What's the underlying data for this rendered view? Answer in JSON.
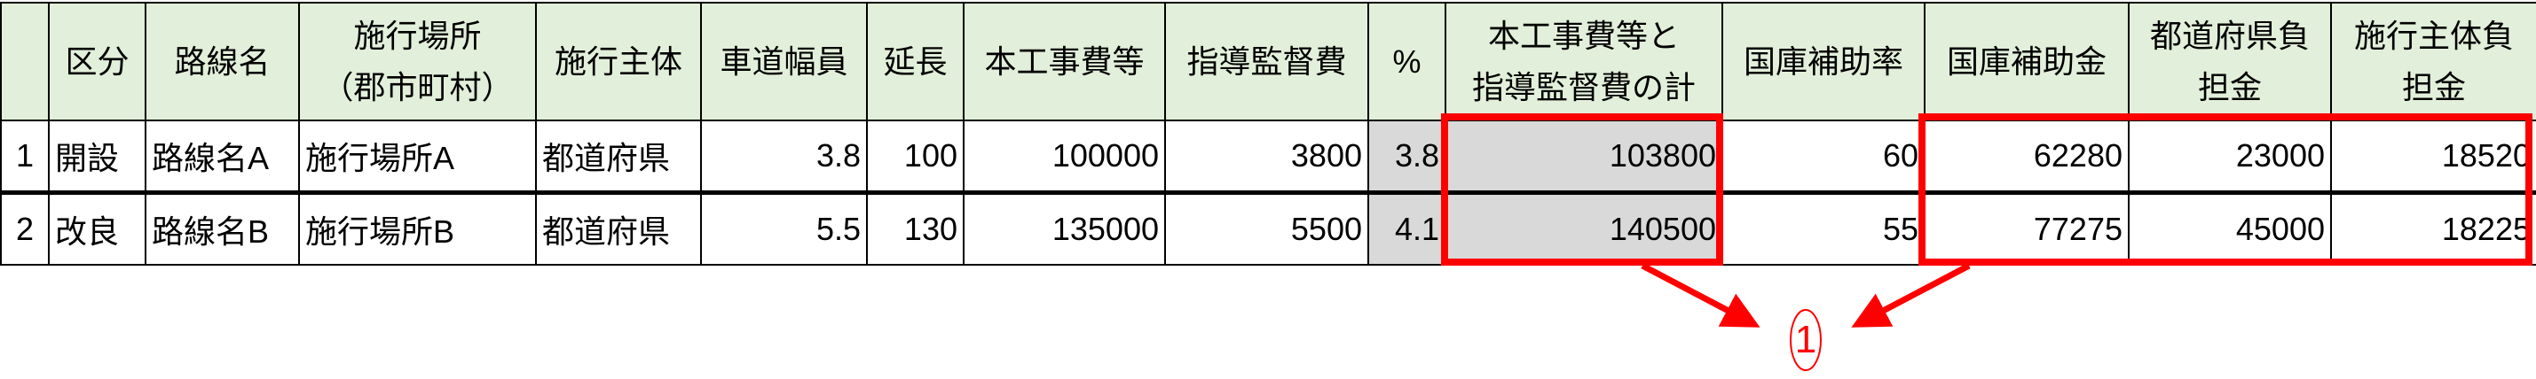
{
  "table": {
    "headers": [
      "",
      "区分",
      "路線名",
      "施行場所\n（郡市町村）",
      "施行主体",
      "車道幅員",
      "延長",
      "本工事費等",
      "指導監督費",
      "%",
      "本工事費等と\n指導監督費の計",
      "国庫補助率",
      "国庫補助金",
      "都道府県負\n担金",
      "施行主体負\n担金"
    ],
    "rows": [
      [
        "1",
        "開設",
        "路線名A",
        "施行場所A",
        "都道府県",
        "3.8",
        "100",
        "100000",
        "3800",
        "3.8",
        "103800",
        "60",
        "62280",
        "23000",
        "18520"
      ],
      [
        "2",
        "改良",
        "路線名B",
        "施行場所B",
        "都道府県",
        "5.5",
        "130",
        "135000",
        "5500",
        "4.1",
        "140500",
        "55",
        "77275",
        "45000",
        "18225"
      ]
    ]
  },
  "annotation": {
    "label": "①",
    "color": "#FF0000"
  },
  "colors": {
    "header_bg": "#E2EFDA",
    "computed_bg": "#D9D9D9",
    "highlight": "#FF0000"
  }
}
